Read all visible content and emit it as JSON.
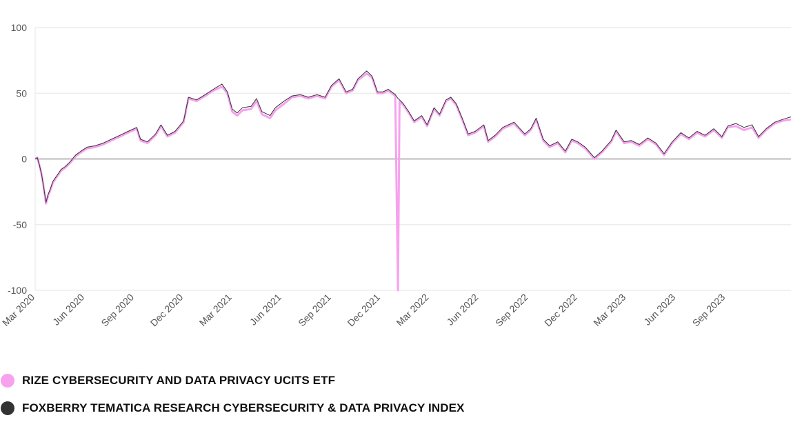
{
  "chart_data": {
    "type": "line",
    "title": "",
    "xlabel": "",
    "ylabel": "",
    "ylim": [
      -100,
      100
    ],
    "yticks": [
      -100,
      -50,
      0,
      50,
      100
    ],
    "xticks": [
      "Mar 2020",
      "Jun 2020",
      "Sep 2020",
      "Dec 2020",
      "Mar 2021",
      "Jun 2021",
      "Sep 2021",
      "Dec 2021",
      "Mar 2022",
      "Jun 2022",
      "Sep 2022",
      "Dec 2022",
      "Mar 2023",
      "Jun 2023",
      "Sep 2023"
    ],
    "xlim": [
      "2020-03-01",
      "2023-12-31"
    ],
    "grid": true,
    "legend_position": "bottom",
    "series": [
      {
        "name": "RIZE CYBERSECURITY AND DATA PRIVACY UCITS ETF",
        "color": "#f7a1ef",
        "points": [
          [
            "2020-03-01",
            0
          ],
          [
            "2020-03-05",
            1
          ],
          [
            "2020-03-09",
            -5
          ],
          [
            "2020-03-13",
            -12
          ],
          [
            "2020-03-17",
            -22
          ],
          [
            "2020-03-21",
            -34
          ],
          [
            "2020-03-25",
            -28
          ],
          [
            "2020-03-29",
            -24
          ],
          [
            "2020-04-03",
            -18
          ],
          [
            "2020-04-08",
            -15
          ],
          [
            "2020-04-13",
            -12
          ],
          [
            "2020-04-18",
            -9
          ],
          [
            "2020-04-25",
            -7
          ],
          [
            "2020-05-05",
            -3
          ],
          [
            "2020-05-15",
            2
          ],
          [
            "2020-05-25",
            5
          ],
          [
            "2020-06-05",
            8
          ],
          [
            "2020-06-20",
            9
          ],
          [
            "2020-07-05",
            11
          ],
          [
            "2020-07-20",
            14
          ],
          [
            "2020-08-05",
            17
          ],
          [
            "2020-08-20",
            20
          ],
          [
            "2020-09-05",
            23
          ],
          [
            "2020-09-12",
            14
          ],
          [
            "2020-09-25",
            12
          ],
          [
            "2020-10-10",
            18
          ],
          [
            "2020-10-20",
            25
          ],
          [
            "2020-11-01",
            17
          ],
          [
            "2020-11-15",
            20
          ],
          [
            "2020-12-01",
            28
          ],
          [
            "2020-12-10",
            46
          ],
          [
            "2020-12-25",
            44
          ],
          [
            "2021-01-10",
            48
          ],
          [
            "2021-01-25",
            52
          ],
          [
            "2021-02-10",
            55
          ],
          [
            "2021-02-20",
            50
          ],
          [
            "2021-03-01",
            36
          ],
          [
            "2021-03-10",
            33
          ],
          [
            "2021-03-20",
            37
          ],
          [
            "2021-04-05",
            38
          ],
          [
            "2021-04-15",
            44
          ],
          [
            "2021-04-25",
            34
          ],
          [
            "2021-05-10",
            31
          ],
          [
            "2021-05-20",
            37
          ],
          [
            "2021-06-05",
            42
          ],
          [
            "2021-06-20",
            47
          ],
          [
            "2021-07-05",
            48
          ],
          [
            "2021-07-20",
            46
          ],
          [
            "2021-08-05",
            48
          ],
          [
            "2021-08-20",
            46
          ],
          [
            "2021-09-01",
            55
          ],
          [
            "2021-09-15",
            60
          ],
          [
            "2021-09-28",
            50
          ],
          [
            "2021-10-10",
            52
          ],
          [
            "2021-10-20",
            60
          ],
          [
            "2021-11-05",
            65
          ],
          [
            "2021-11-15",
            62
          ],
          [
            "2021-11-25",
            50
          ],
          [
            "2021-12-05",
            50
          ],
          [
            "2021-12-15",
            52
          ],
          [
            "2021-12-28",
            48
          ],
          [
            "2022-01-02",
            -100
          ],
          [
            "2022-01-05",
            44
          ],
          [
            "2022-01-12",
            41
          ],
          [
            "2022-01-22",
            35
          ],
          [
            "2022-02-01",
            28
          ],
          [
            "2022-02-15",
            32
          ],
          [
            "2022-02-25",
            25
          ],
          [
            "2022-03-10",
            38
          ],
          [
            "2022-03-20",
            33
          ],
          [
            "2022-04-01",
            44
          ],
          [
            "2022-04-10",
            46
          ],
          [
            "2022-04-20",
            41
          ],
          [
            "2022-05-01",
            30
          ],
          [
            "2022-05-12",
            18
          ],
          [
            "2022-05-25",
            20
          ],
          [
            "2022-06-10",
            25
          ],
          [
            "2022-06-18",
            13
          ],
          [
            "2022-07-01",
            17
          ],
          [
            "2022-07-15",
            23
          ],
          [
            "2022-08-05",
            27
          ],
          [
            "2022-08-25",
            18
          ],
          [
            "2022-09-05",
            22
          ],
          [
            "2022-09-15",
            30
          ],
          [
            "2022-09-28",
            14
          ],
          [
            "2022-10-10",
            9
          ],
          [
            "2022-10-25",
            12
          ],
          [
            "2022-11-08",
            5
          ],
          [
            "2022-11-20",
            14
          ],
          [
            "2022-12-01",
            12
          ],
          [
            "2022-12-15",
            8
          ],
          [
            "2023-01-01",
            0
          ],
          [
            "2023-01-15",
            5
          ],
          [
            "2023-02-01",
            13
          ],
          [
            "2023-02-10",
            21
          ],
          [
            "2023-02-25",
            12
          ],
          [
            "2023-03-10",
            13
          ],
          [
            "2023-03-25",
            10
          ],
          [
            "2023-04-10",
            15
          ],
          [
            "2023-04-25",
            11
          ],
          [
            "2023-05-10",
            3
          ],
          [
            "2023-05-25",
            12
          ],
          [
            "2023-06-10",
            19
          ],
          [
            "2023-06-25",
            15
          ],
          [
            "2023-07-10",
            20
          ],
          [
            "2023-07-25",
            17
          ],
          [
            "2023-08-10",
            22
          ],
          [
            "2023-08-25",
            16
          ],
          [
            "2023-09-05",
            24
          ],
          [
            "2023-09-20",
            25
          ],
          [
            "2023-10-05",
            22
          ],
          [
            "2023-10-20",
            24
          ],
          [
            "2023-11-01",
            16
          ],
          [
            "2023-11-15",
            22
          ],
          [
            "2023-12-01",
            27
          ],
          [
            "2023-12-15",
            29
          ],
          [
            "2023-12-31",
            30
          ]
        ]
      },
      {
        "name": "FOXBERRY TEMATICA RESEARCH CYBERSECURITY & DATA PRIVACY INDEX",
        "color": "#333333",
        "points": [
          [
            "2020-03-01",
            0
          ],
          [
            "2020-03-05",
            1
          ],
          [
            "2020-03-09",
            -5
          ],
          [
            "2020-03-13",
            -12
          ],
          [
            "2020-03-17",
            -22
          ],
          [
            "2020-03-21",
            -33
          ],
          [
            "2020-03-25",
            -27
          ],
          [
            "2020-03-29",
            -23
          ],
          [
            "2020-04-03",
            -17
          ],
          [
            "2020-04-08",
            -14
          ],
          [
            "2020-04-13",
            -11
          ],
          [
            "2020-04-18",
            -8
          ],
          [
            "2020-04-25",
            -6
          ],
          [
            "2020-05-05",
            -2
          ],
          [
            "2020-05-15",
            3
          ],
          [
            "2020-05-25",
            6
          ],
          [
            "2020-06-05",
            9
          ],
          [
            "2020-06-20",
            10
          ],
          [
            "2020-07-05",
            12
          ],
          [
            "2020-07-20",
            15
          ],
          [
            "2020-08-05",
            18
          ],
          [
            "2020-08-20",
            21
          ],
          [
            "2020-09-05",
            24
          ],
          [
            "2020-09-12",
            15
          ],
          [
            "2020-09-25",
            13
          ],
          [
            "2020-10-10",
            19
          ],
          [
            "2020-10-20",
            26
          ],
          [
            "2020-11-01",
            18
          ],
          [
            "2020-11-15",
            21
          ],
          [
            "2020-12-01",
            29
          ],
          [
            "2020-12-10",
            47
          ],
          [
            "2020-12-25",
            45
          ],
          [
            "2021-01-10",
            49
          ],
          [
            "2021-01-25",
            53
          ],
          [
            "2021-02-10",
            57
          ],
          [
            "2021-02-20",
            51
          ],
          [
            "2021-03-01",
            38
          ],
          [
            "2021-03-10",
            35
          ],
          [
            "2021-03-20",
            39
          ],
          [
            "2021-04-05",
            40
          ],
          [
            "2021-04-15",
            46
          ],
          [
            "2021-04-25",
            36
          ],
          [
            "2021-05-10",
            33
          ],
          [
            "2021-05-20",
            39
          ],
          [
            "2021-06-05",
            44
          ],
          [
            "2021-06-20",
            48
          ],
          [
            "2021-07-05",
            49
          ],
          [
            "2021-07-20",
            47
          ],
          [
            "2021-08-05",
            49
          ],
          [
            "2021-08-20",
            47
          ],
          [
            "2021-09-01",
            56
          ],
          [
            "2021-09-15",
            61
          ],
          [
            "2021-09-28",
            51
          ],
          [
            "2021-10-10",
            53
          ],
          [
            "2021-10-20",
            61
          ],
          [
            "2021-11-05",
            67
          ],
          [
            "2021-11-15",
            63
          ],
          [
            "2021-11-25",
            51
          ],
          [
            "2021-12-05",
            51
          ],
          [
            "2021-12-15",
            53
          ],
          [
            "2021-12-28",
            49
          ],
          [
            "2022-01-02",
            46
          ],
          [
            "2022-01-05",
            45
          ],
          [
            "2022-01-12",
            42
          ],
          [
            "2022-01-22",
            36
          ],
          [
            "2022-02-01",
            29
          ],
          [
            "2022-02-15",
            33
          ],
          [
            "2022-02-25",
            26
          ],
          [
            "2022-03-10",
            39
          ],
          [
            "2022-03-20",
            34
          ],
          [
            "2022-04-01",
            45
          ],
          [
            "2022-04-10",
            47
          ],
          [
            "2022-04-20",
            42
          ],
          [
            "2022-05-01",
            31
          ],
          [
            "2022-05-12",
            19
          ],
          [
            "2022-05-25",
            21
          ],
          [
            "2022-06-10",
            26
          ],
          [
            "2022-06-18",
            14
          ],
          [
            "2022-07-01",
            18
          ],
          [
            "2022-07-15",
            24
          ],
          [
            "2022-08-05",
            28
          ],
          [
            "2022-08-25",
            19
          ],
          [
            "2022-09-05",
            23
          ],
          [
            "2022-09-15",
            31
          ],
          [
            "2022-09-28",
            15
          ],
          [
            "2022-10-10",
            10
          ],
          [
            "2022-10-25",
            13
          ],
          [
            "2022-11-08",
            6
          ],
          [
            "2022-11-20",
            15
          ],
          [
            "2022-12-01",
            13
          ],
          [
            "2022-12-15",
            9
          ],
          [
            "2023-01-01",
            1
          ],
          [
            "2023-01-15",
            6
          ],
          [
            "2023-02-01",
            14
          ],
          [
            "2023-02-10",
            22
          ],
          [
            "2023-02-25",
            13
          ],
          [
            "2023-03-10",
            14
          ],
          [
            "2023-03-25",
            11
          ],
          [
            "2023-04-10",
            16
          ],
          [
            "2023-04-25",
            12
          ],
          [
            "2023-05-10",
            4
          ],
          [
            "2023-05-25",
            13
          ],
          [
            "2023-06-10",
            20
          ],
          [
            "2023-06-25",
            16
          ],
          [
            "2023-07-10",
            21
          ],
          [
            "2023-07-25",
            18
          ],
          [
            "2023-08-10",
            23
          ],
          [
            "2023-08-25",
            17
          ],
          [
            "2023-09-05",
            25
          ],
          [
            "2023-09-20",
            27
          ],
          [
            "2023-10-05",
            24
          ],
          [
            "2023-10-20",
            26
          ],
          [
            "2023-11-01",
            17
          ],
          [
            "2023-11-15",
            23
          ],
          [
            "2023-12-01",
            28
          ],
          [
            "2023-12-15",
            30
          ],
          [
            "2023-12-31",
            32
          ]
        ]
      }
    ]
  }
}
